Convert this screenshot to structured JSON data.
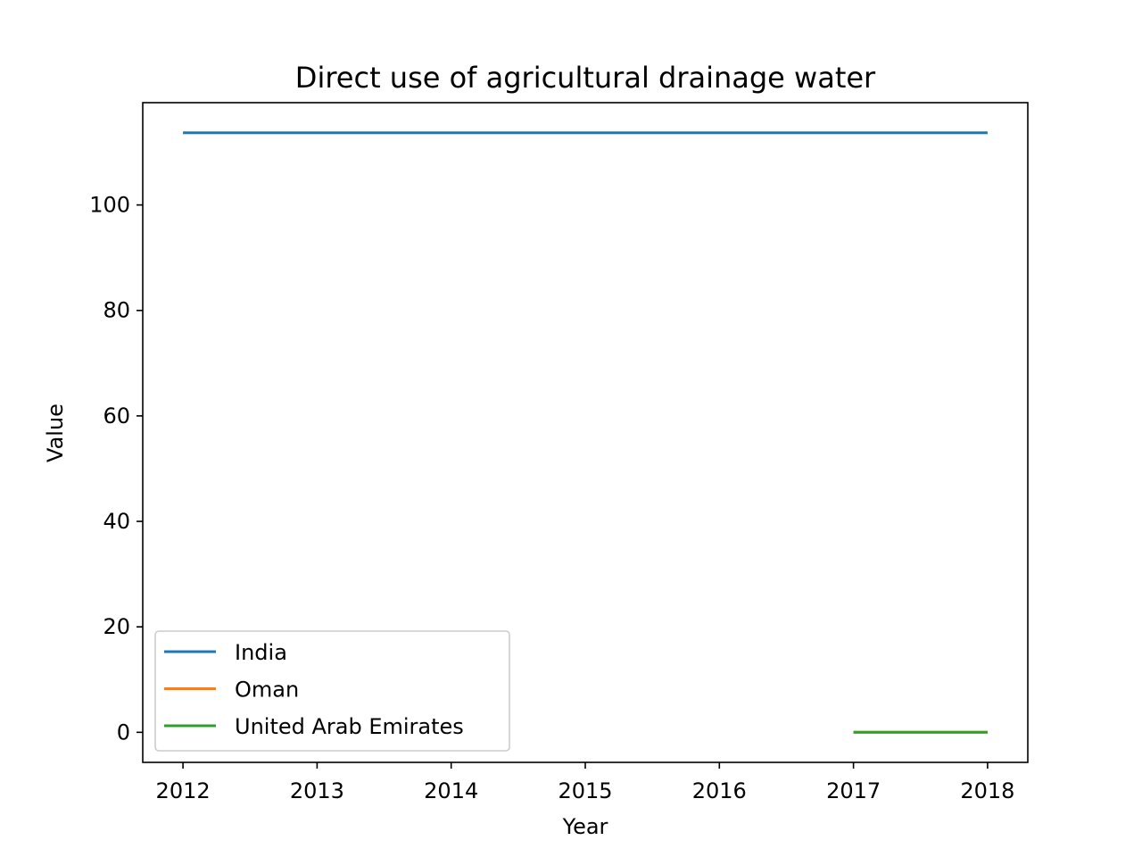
{
  "chart_data": {
    "type": "line",
    "title": "Direct use of agricultural drainage water",
    "xlabel": "Year",
    "ylabel": "Value",
    "xlim": [
      2011.7,
      2018.3
    ],
    "ylim": [
      -5.7,
      119.4
    ],
    "xticks": [
      2012,
      2013,
      2014,
      2015,
      2016,
      2017,
      2018
    ],
    "yticks": [
      0,
      20,
      40,
      60,
      80,
      100
    ],
    "grid": false,
    "legend_position": "lower-left",
    "series": [
      {
        "name": "India",
        "color": "#1f77b4",
        "x": [
          2012,
          2018
        ],
        "y": [
          113.7,
          113.7
        ]
      },
      {
        "name": "Oman",
        "color": "#ff7f0e",
        "x": [
          2017,
          2018
        ],
        "y": [
          0,
          0
        ]
      },
      {
        "name": "United Arab Emirates",
        "color": "#2ca02c",
        "x": [
          2017,
          2018
        ],
        "y": [
          0,
          0
        ]
      }
    ]
  }
}
